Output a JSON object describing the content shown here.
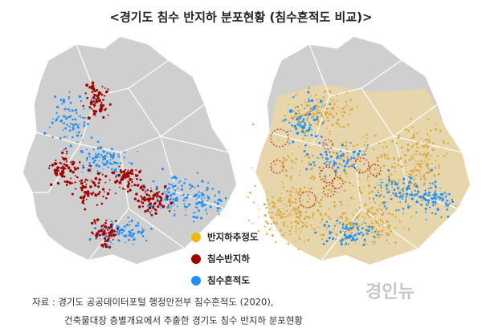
{
  "title": "<경기도 침수 반지하 분포현황 (침수흔적도 비교)>",
  "legend": {
    "items": [
      {
        "label": "반지하추정도",
        "color": "#f2b705"
      },
      {
        "label": "침수반지하",
        "color": "#a30000"
      },
      {
        "label": "침수흔적도",
        "color": "#1e90ff"
      }
    ]
  },
  "source": {
    "lines": [
      "자료 : 경기도 공공데이터포털 행정안전부 침수흔적도 (2020),",
      "건축물대장 층별개요에서 추출한 경기도 침수 반지하 분포현황"
    ]
  },
  "watermark": "경인뉴"
}
